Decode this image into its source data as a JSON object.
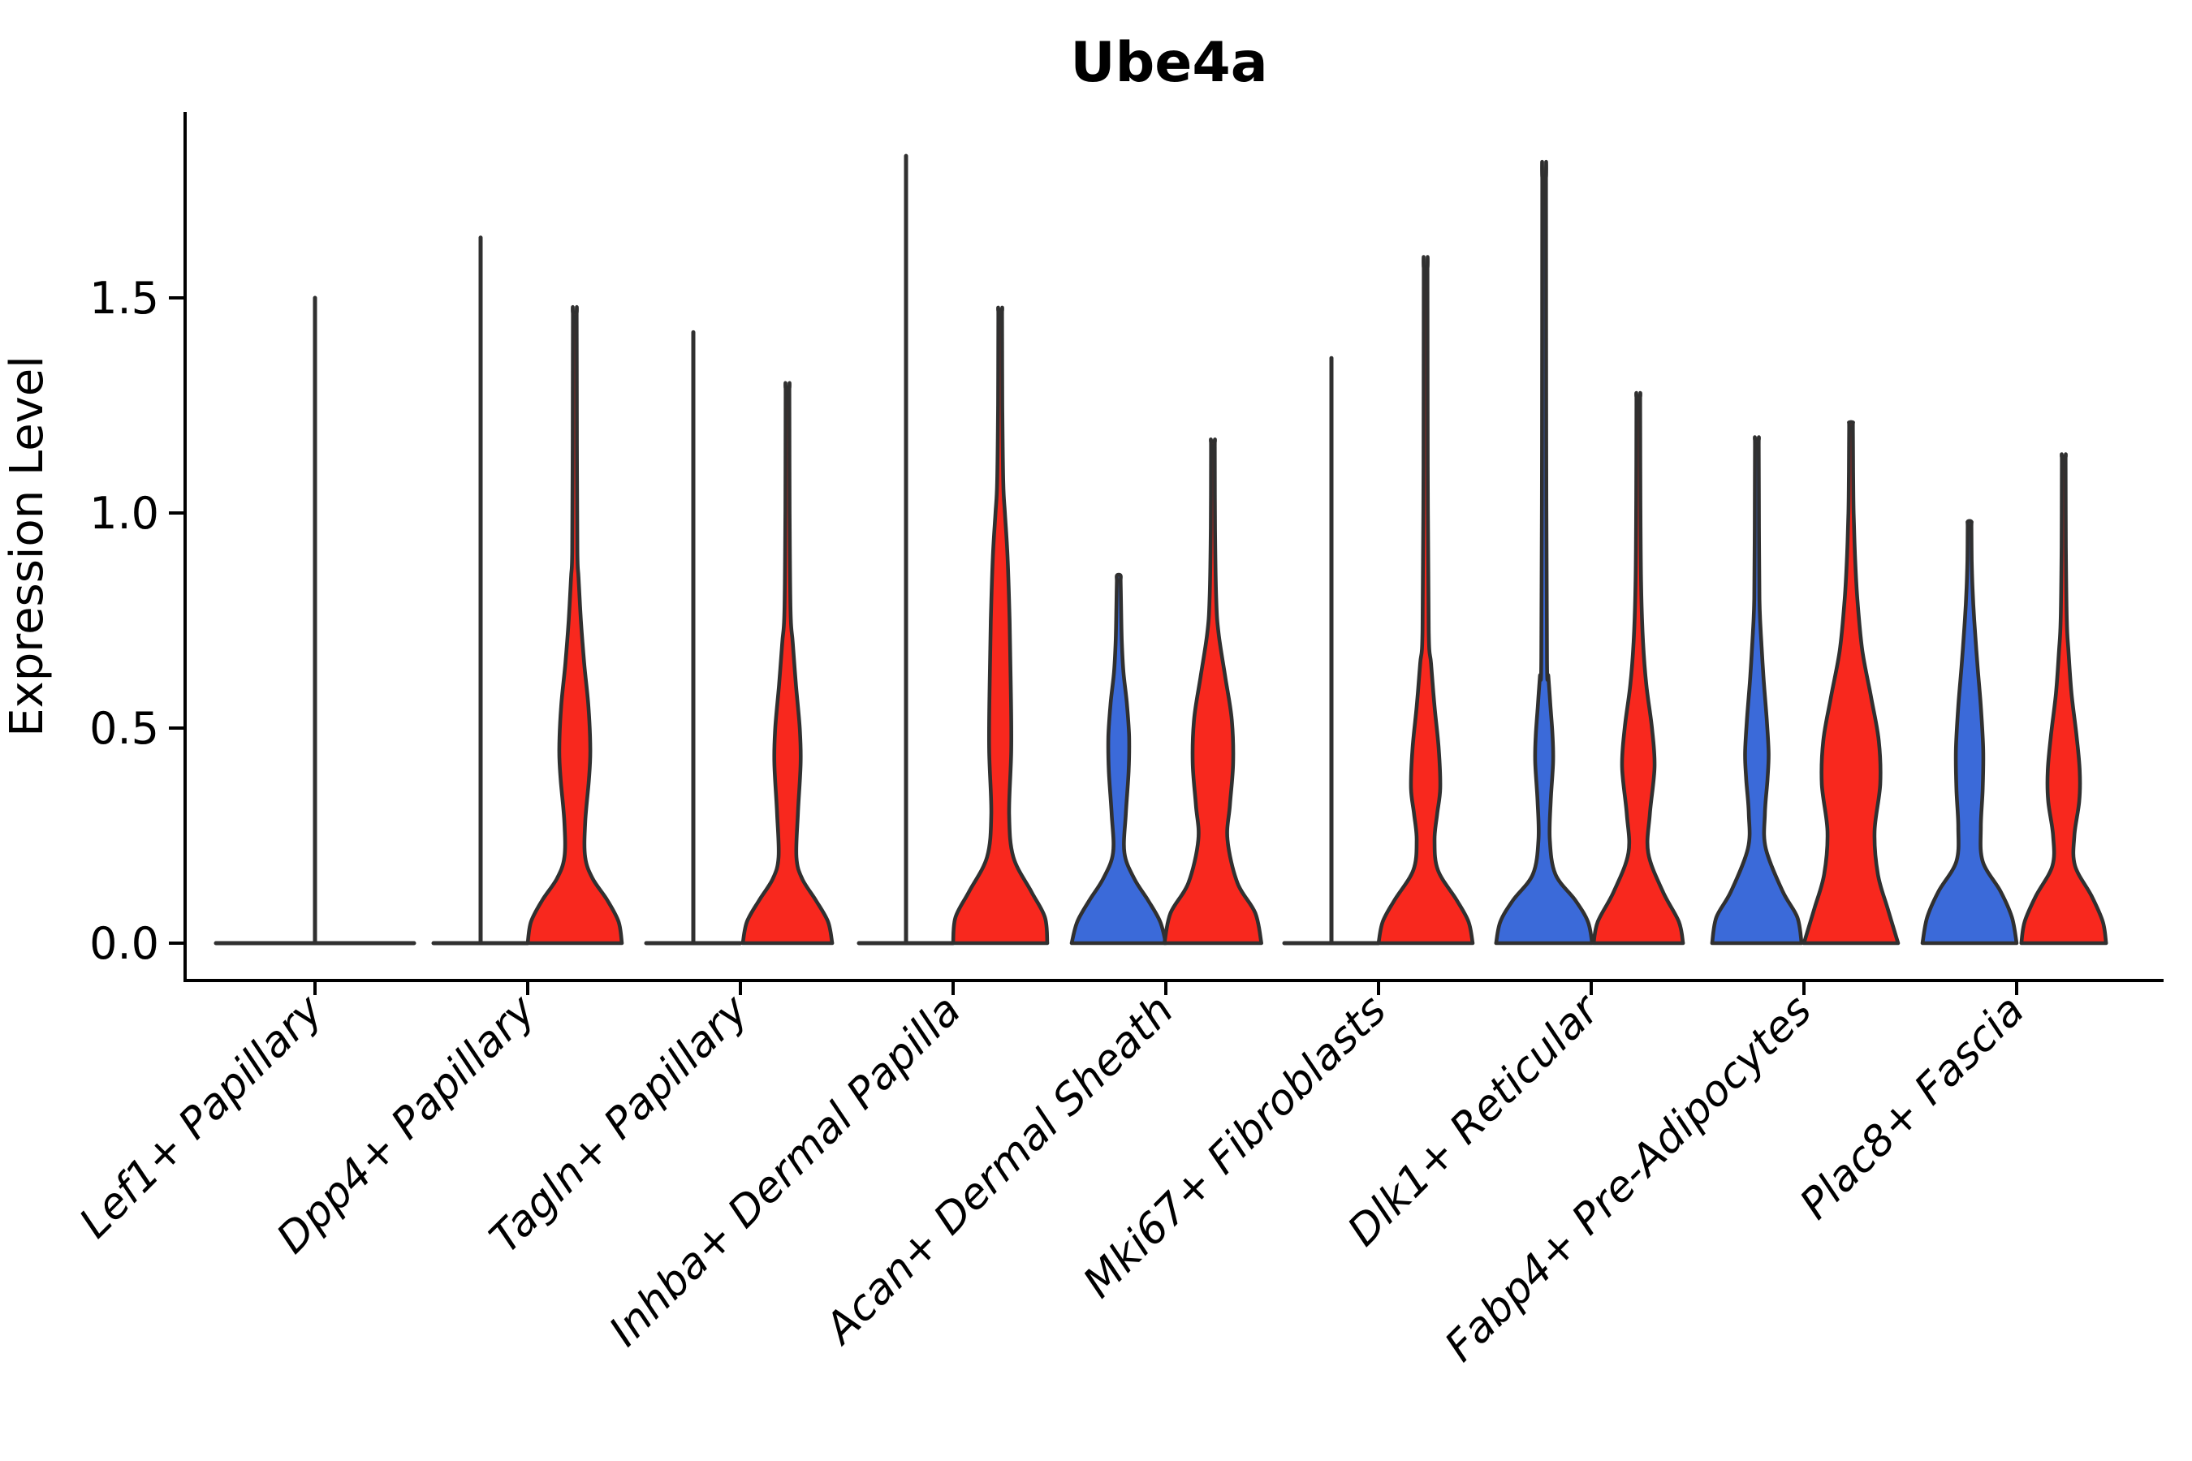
{
  "chart_data": {
    "type": "violin",
    "title": "Ube4a",
    "ylabel": "Expression Level",
    "xlabel": "",
    "yticks": [
      0.0,
      0.5,
      1.0,
      1.5
    ],
    "ylim": [
      0,
      1.93
    ],
    "grid": false,
    "legend_position": "none",
    "categories": [
      "Lef1+ Papillary",
      "Dpp4+ Papillary",
      "Tagln+ Papillary",
      "Inhba+ Dermal Papilla",
      "Acan+ Dermal Sheath",
      "Mki67+ Fibroblasts",
      "Dlk1+ Reticular",
      "Fabp4+ Pre-Adipocytes",
      "Plac8+ Fascia"
    ],
    "colors": {
      "group_blue": "#3B6AD9",
      "group_red": "#F8281E",
      "outline": "#303030",
      "axis": "#000000",
      "title_text": "#000000"
    },
    "violins": [
      {
        "category": "Lef1+ Papillary",
        "side": "center",
        "color": "none",
        "collapsed": true,
        "base_halfwidth": 122,
        "max_value": 1.5
      },
      {
        "category": "Dpp4+ Papillary",
        "side": "left",
        "color": "blue",
        "collapsed": true,
        "base_halfwidth": 58,
        "max_value": 1.64
      },
      {
        "category": "Dpp4+ Papillary",
        "side": "right",
        "color": "red",
        "collapsed": false,
        "max_value": 1.465,
        "profile": [
          [
            0,
            1.0
          ],
          [
            0.05,
            0.93
          ],
          [
            0.1,
            0.69
          ],
          [
            0.15,
            0.38
          ],
          [
            0.2,
            0.22
          ],
          [
            0.28,
            0.22
          ],
          [
            0.38,
            0.3
          ],
          [
            0.45,
            0.33
          ],
          [
            0.55,
            0.29
          ],
          [
            0.65,
            0.2
          ],
          [
            0.75,
            0.13
          ],
          [
            0.85,
            0.08
          ],
          [
            0.91,
            0.055
          ]
        ]
      },
      {
        "category": "Tagln+ Papillary",
        "side": "left",
        "color": "blue",
        "collapsed": true,
        "base_halfwidth": 58,
        "max_value": 1.42
      },
      {
        "category": "Tagln+ Papillary",
        "side": "right",
        "color": "red",
        "collapsed": false,
        "max_value": 1.29,
        "profile": [
          [
            0,
            0.95
          ],
          [
            0.05,
            0.86
          ],
          [
            0.1,
            0.6
          ],
          [
            0.15,
            0.31
          ],
          [
            0.2,
            0.19
          ],
          [
            0.3,
            0.22
          ],
          [
            0.42,
            0.28
          ],
          [
            0.5,
            0.26
          ],
          [
            0.6,
            0.18
          ],
          [
            0.7,
            0.11
          ],
          [
            0.77,
            0.065
          ]
        ]
      },
      {
        "category": "Inhba+ Dermal Papilla",
        "side": "left",
        "color": "blue",
        "collapsed": true,
        "base_halfwidth": 58,
        "max_value": 1.83
      },
      {
        "category": "Inhba+ Dermal Papilla",
        "side": "right",
        "color": "red",
        "collapsed": false,
        "max_value": 1.47,
        "profile": [
          [
            0,
            1.0
          ],
          [
            0.06,
            0.95
          ],
          [
            0.12,
            0.66
          ],
          [
            0.2,
            0.28
          ],
          [
            0.3,
            0.19
          ],
          [
            0.45,
            0.235
          ],
          [
            0.6,
            0.225
          ],
          [
            0.75,
            0.2
          ],
          [
            0.9,
            0.155
          ],
          [
            1.0,
            0.1
          ],
          [
            1.07,
            0.065
          ]
        ]
      },
      {
        "category": "Acan+ Dermal Sheath",
        "side": "left",
        "color": "blue",
        "collapsed": false,
        "max_value": 0.855,
        "profile": [
          [
            0,
            1.0
          ],
          [
            0.05,
            0.88
          ],
          [
            0.1,
            0.62
          ],
          [
            0.15,
            0.33
          ],
          [
            0.21,
            0.12
          ],
          [
            0.3,
            0.15
          ],
          [
            0.4,
            0.21
          ],
          [
            0.48,
            0.22
          ],
          [
            0.56,
            0.17
          ],
          [
            0.63,
            0.1
          ],
          [
            0.7,
            0.065
          ],
          [
            0.78,
            0.05
          ]
        ]
      },
      {
        "category": "Acan+ Dermal Sheath",
        "side": "right",
        "color": "red",
        "collapsed": false,
        "max_value": 1.165,
        "profile": [
          [
            0,
            1.03
          ],
          [
            0.07,
            0.9
          ],
          [
            0.14,
            0.52
          ],
          [
            0.24,
            0.31
          ],
          [
            0.32,
            0.36
          ],
          [
            0.42,
            0.43
          ],
          [
            0.52,
            0.4
          ],
          [
            0.62,
            0.26
          ],
          [
            0.72,
            0.12
          ],
          [
            0.8,
            0.07
          ]
        ]
      },
      {
        "category": "Mki67+ Fibroblasts",
        "side": "left",
        "color": "blue",
        "collapsed": true,
        "base_halfwidth": 58,
        "max_value": 1.36
      },
      {
        "category": "Mki67+ Fibroblasts",
        "side": "right",
        "color": "red",
        "collapsed": false,
        "max_value": 1.57,
        "profile": [
          [
            0,
            1.0
          ],
          [
            0.05,
            0.91
          ],
          [
            0.1,
            0.66
          ],
          [
            0.17,
            0.26
          ],
          [
            0.24,
            0.19
          ],
          [
            0.3,
            0.245
          ],
          [
            0.36,
            0.31
          ],
          [
            0.45,
            0.28
          ],
          [
            0.55,
            0.19
          ],
          [
            0.65,
            0.115
          ],
          [
            0.73,
            0.065
          ]
        ]
      },
      {
        "category": "Dlk1+ Reticular",
        "side": "left",
        "color": "blue",
        "collapsed": false,
        "max_value": 1.78,
        "profile": [
          [
            0,
            1.02
          ],
          [
            0.05,
            0.93
          ],
          [
            0.1,
            0.66
          ],
          [
            0.16,
            0.24
          ],
          [
            0.24,
            0.12
          ],
          [
            0.33,
            0.14
          ],
          [
            0.42,
            0.19
          ],
          [
            0.48,
            0.18
          ],
          [
            0.55,
            0.135
          ],
          [
            0.62,
            0.09
          ],
          [
            0.66,
            0.06
          ]
        ]
      },
      {
        "category": "Dlk1+ Reticular",
        "side": "right",
        "color": "red",
        "collapsed": false,
        "max_value": 1.27,
        "profile": [
          [
            0,
            0.95
          ],
          [
            0.05,
            0.86
          ],
          [
            0.12,
            0.52
          ],
          [
            0.21,
            0.21
          ],
          [
            0.3,
            0.245
          ],
          [
            0.41,
            0.345
          ],
          [
            0.5,
            0.29
          ],
          [
            0.6,
            0.17
          ],
          [
            0.7,
            0.1
          ],
          [
            0.83,
            0.06
          ]
        ]
      },
      {
        "category": "Fabp4+ Pre-Adipocytes",
        "side": "left",
        "color": "blue",
        "collapsed": false,
        "max_value": 1.17,
        "profile": [
          [
            0,
            0.95
          ],
          [
            0.06,
            0.86
          ],
          [
            0.12,
            0.55
          ],
          [
            0.22,
            0.19
          ],
          [
            0.3,
            0.17
          ],
          [
            0.38,
            0.225
          ],
          [
            0.44,
            0.25
          ],
          [
            0.52,
            0.21
          ],
          [
            0.62,
            0.14
          ],
          [
            0.72,
            0.085
          ],
          [
            0.8,
            0.055
          ]
        ]
      },
      {
        "category": "Fabp4+ Pre-Adipocytes",
        "side": "right",
        "color": "red",
        "collapsed": false,
        "max_value": 1.21,
        "profile": [
          [
            0,
            1.0
          ],
          [
            0.08,
            0.78
          ],
          [
            0.16,
            0.57
          ],
          [
            0.26,
            0.5
          ],
          [
            0.37,
            0.62
          ],
          [
            0.47,
            0.59
          ],
          [
            0.57,
            0.43
          ],
          [
            0.68,
            0.24
          ],
          [
            0.8,
            0.135
          ],
          [
            0.9,
            0.085
          ],
          [
            1.0,
            0.055
          ]
        ]
      },
      {
        "category": "Plac8+ Fascia",
        "side": "left",
        "color": "blue",
        "collapsed": false,
        "max_value": 0.98,
        "profile": [
          [
            0,
            1.0
          ],
          [
            0.06,
            0.9
          ],
          [
            0.12,
            0.66
          ],
          [
            0.19,
            0.28
          ],
          [
            0.27,
            0.24
          ],
          [
            0.36,
            0.28
          ],
          [
            0.45,
            0.29
          ],
          [
            0.55,
            0.24
          ],
          [
            0.65,
            0.165
          ],
          [
            0.75,
            0.1
          ],
          [
            0.82,
            0.065
          ]
        ]
      },
      {
        "category": "Plac8+ Fascia",
        "side": "right",
        "color": "red",
        "collapsed": false,
        "max_value": 1.13,
        "profile": [
          [
            0,
            0.9
          ],
          [
            0.05,
            0.83
          ],
          [
            0.11,
            0.59
          ],
          [
            0.18,
            0.24
          ],
          [
            0.25,
            0.225
          ],
          [
            0.33,
            0.33
          ],
          [
            0.4,
            0.34
          ],
          [
            0.48,
            0.275
          ],
          [
            0.58,
            0.165
          ],
          [
            0.68,
            0.1
          ],
          [
            0.75,
            0.065
          ]
        ]
      }
    ]
  }
}
